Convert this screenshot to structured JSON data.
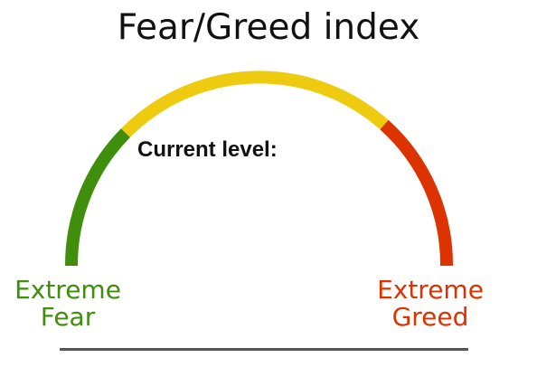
{
  "title": "Fear/Greed index",
  "current_level_label": "Current level:",
  "scale": {
    "left_label_line1": "Extreme",
    "left_label_line2": "Fear",
    "right_label_line1": "Extreme",
    "right_label_line2": "Greed"
  },
  "colors": {
    "fear": "#3f8e0c",
    "neutral": "#eecb0e",
    "greed": "#dc3300",
    "baseline": "#555555"
  }
}
